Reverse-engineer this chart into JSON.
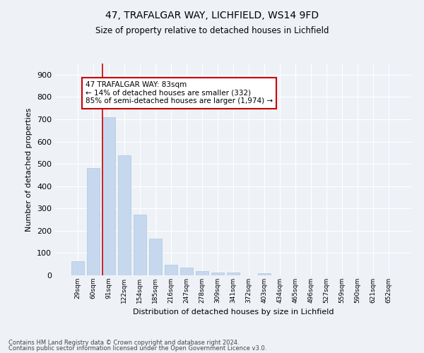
{
  "title_line1": "47, TRAFALGAR WAY, LICHFIELD, WS14 9FD",
  "title_line2": "Size of property relative to detached houses in Lichfield",
  "xlabel": "Distribution of detached houses by size in Lichfield",
  "ylabel": "Number of detached properties",
  "categories": [
    "29sqm",
    "60sqm",
    "91sqm",
    "122sqm",
    "154sqm",
    "185sqm",
    "216sqm",
    "247sqm",
    "278sqm",
    "309sqm",
    "341sqm",
    "372sqm",
    "403sqm",
    "434sqm",
    "465sqm",
    "496sqm",
    "527sqm",
    "559sqm",
    "590sqm",
    "621sqm",
    "652sqm"
  ],
  "values": [
    62,
    480,
    710,
    537,
    272,
    165,
    47,
    35,
    20,
    14,
    14,
    0,
    10,
    0,
    0,
    0,
    0,
    0,
    0,
    0,
    0
  ],
  "bar_color": "#c5d8ed",
  "bar_edgecolor": "#aec6de",
  "ylim": [
    0,
    950
  ],
  "yticks": [
    0,
    100,
    200,
    300,
    400,
    500,
    600,
    700,
    800,
    900
  ],
  "redline_x": 2,
  "annotation_line1": "47 TRAFALGAR WAY: 83sqm",
  "annotation_line2": "← 14% of detached houses are smaller (332)",
  "annotation_line3": "85% of semi-detached houses are larger (1,974) →",
  "footer_line1": "Contains HM Land Registry data © Crown copyright and database right 2024.",
  "footer_line2": "Contains public sector information licensed under the Open Government Licence v3.0.",
  "background_color": "#eef2f7",
  "grid_color": "#ffffff",
  "annotation_box_edgecolor": "#cc0000",
  "annotation_box_facecolor": "#ffffff",
  "redline_color": "#cc0000"
}
